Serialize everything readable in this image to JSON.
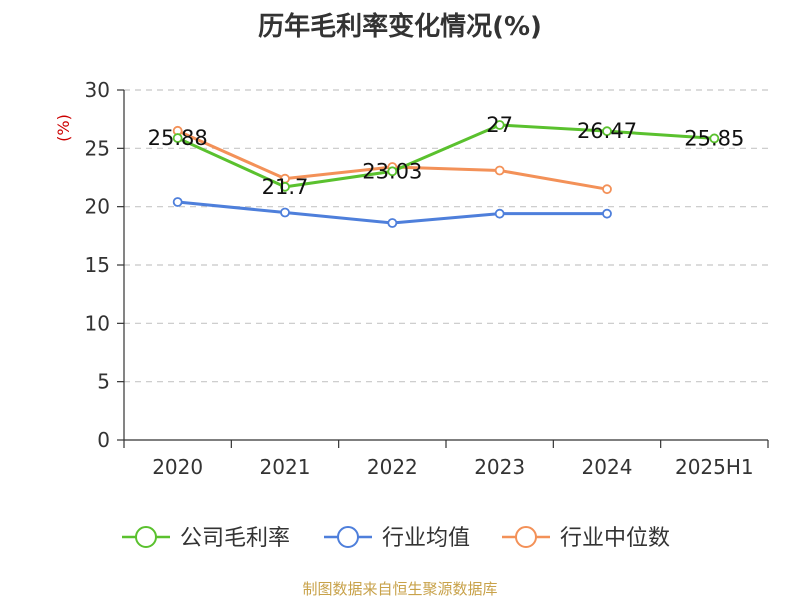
{
  "chart_data": {
    "type": "line",
    "title": "历年毛利率变化情况(%)",
    "ylabel": "(%)",
    "categories": [
      "2020",
      "2021",
      "2022",
      "2023",
      "2024",
      "2025H1"
    ],
    "ylim": [
      0,
      30
    ],
    "yticks": [
      0,
      5,
      10,
      15,
      20,
      25,
      30
    ],
    "grid": true,
    "legend_position": "bottom",
    "series": [
      {
        "name": "公司毛利率",
        "color": "#5ac12e",
        "values": [
          25.88,
          21.7,
          23.03,
          27,
          26.47,
          25.85
        ],
        "labels": [
          "25.88",
          "21.7",
          "23.03",
          "27",
          "26.47",
          "25.85"
        ]
      },
      {
        "name": "行业均值",
        "color": "#4e7fdb",
        "values": [
          20.4,
          19.5,
          18.6,
          19.4,
          19.4,
          null
        ]
      },
      {
        "name": "行业中位数",
        "color": "#f39158",
        "values": [
          26.5,
          22.4,
          23.4,
          23.1,
          21.5,
          null
        ]
      }
    ],
    "unit_color": "#cc0000"
  },
  "footer": {
    "source": "制图数据来自恒生聚源数据库"
  }
}
